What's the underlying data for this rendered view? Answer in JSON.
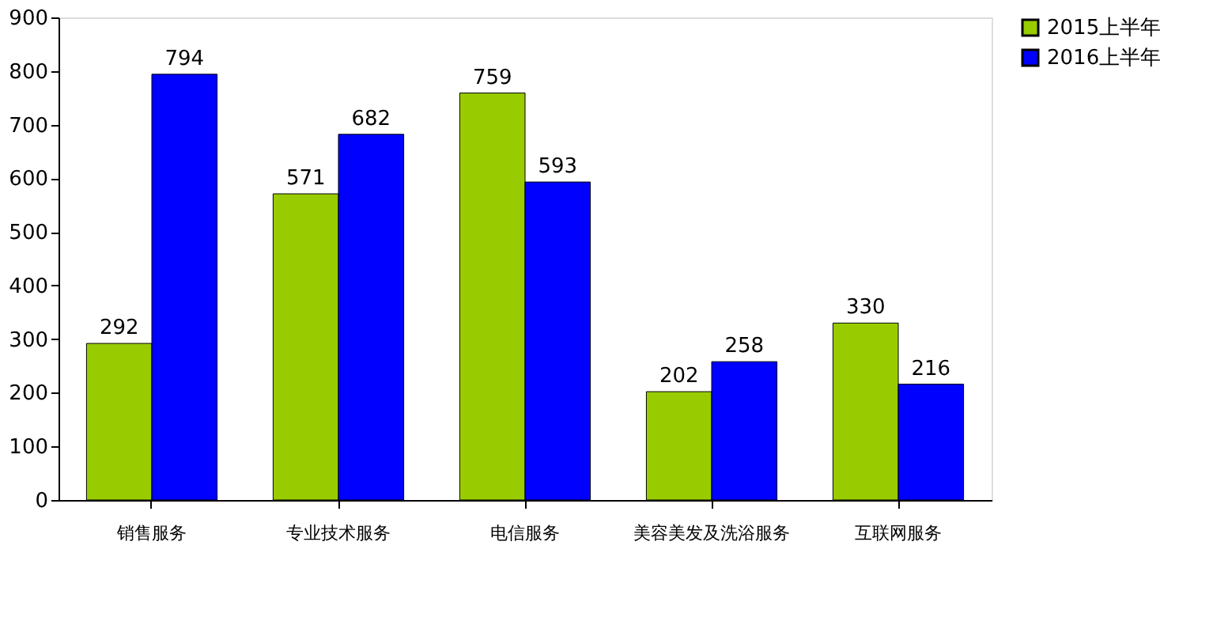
{
  "chart_data": {
    "type": "bar",
    "categories": [
      "销售服务",
      "专业技术服务",
      "电信服务",
      "美容美发及洗浴服务",
      "互联网服务"
    ],
    "series": [
      {
        "name": "2015上半年",
        "color": "#99cc00",
        "values": [
          292,
          571,
          759,
          202,
          330
        ]
      },
      {
        "name": "2016上半年",
        "color": "#0000ff",
        "values": [
          794,
          682,
          593,
          258,
          216
        ]
      }
    ],
    "ylim": [
      0,
      900
    ],
    "yticks": [
      0,
      100,
      200,
      300,
      400,
      500,
      600,
      700,
      800,
      900
    ],
    "data_labels": true,
    "legend": "right",
    "grid": false
  }
}
